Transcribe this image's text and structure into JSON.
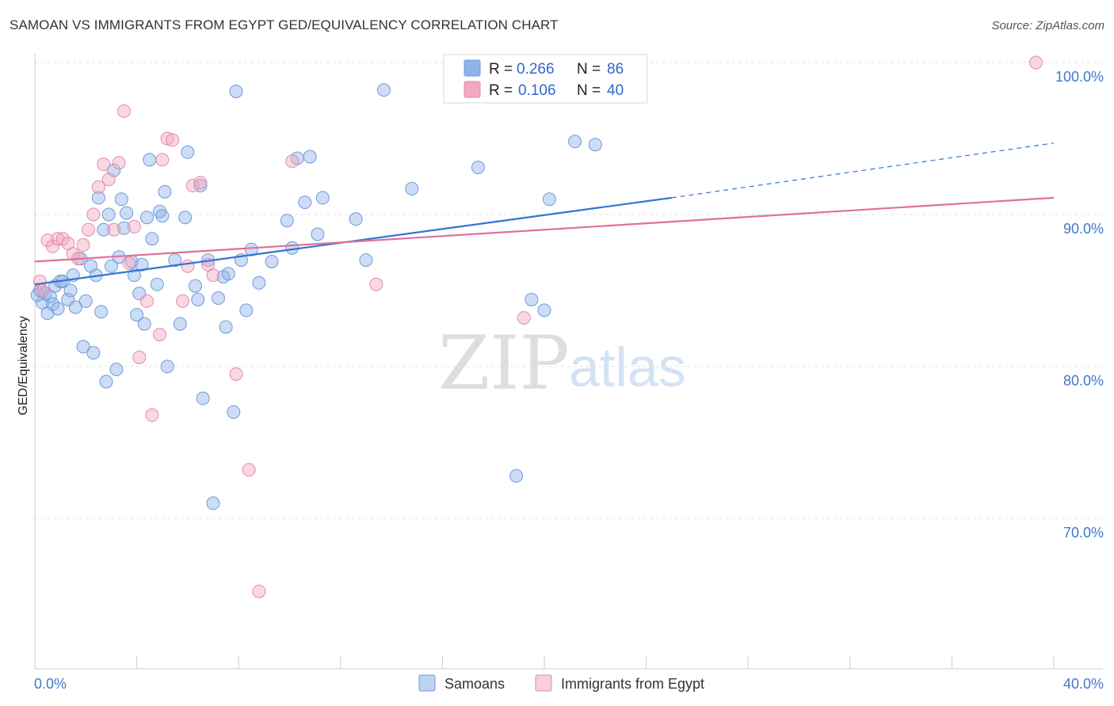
{
  "header": {
    "title": "SAMOAN VS IMMIGRANTS FROM EGYPT GED/EQUIVALENCY CORRELATION CHART",
    "source": "Source: ZipAtlas.com"
  },
  "watermark": {
    "zip": "ZIP",
    "atlas": "atlas"
  },
  "legend": {
    "rows": [
      {
        "r_label": "R =",
        "r_value": "0.266",
        "n_label": "N =",
        "n_value": "86",
        "color": "#8fb4e8"
      },
      {
        "r_label": "R =",
        "r_value": "0.106",
        "n_label": "N =",
        "n_value": "40",
        "color": "#f2a8c0"
      }
    ]
  },
  "bottom_legend": {
    "items": [
      "Samoans",
      "Immigrants from Egypt"
    ]
  },
  "chart_data": {
    "type": "scatter",
    "title": "SAMOAN VS IMMIGRANTS FROM EGYPT GED/EQUIVALENCY CORRELATION CHART",
    "xlabel": "",
    "ylabel": "GED/Equivalency",
    "xlim": [
      0,
      40
    ],
    "ylim": [
      60,
      100
    ],
    "x_tick_labels": [
      "0.0%",
      "40.0%"
    ],
    "y_tick_values": [
      70,
      80,
      90,
      100
    ],
    "y_tick_labels": [
      "70.0%",
      "80.0%",
      "90.0%",
      "100.0%"
    ],
    "grid": true,
    "legend_position": "top-center",
    "colors": {
      "Samoans": "#3374d4",
      "Immigrants from Egypt": "#e0709a",
      "tick_text": "#4477cc"
    },
    "series": [
      {
        "name": "Samoans",
        "color": "#8fb4e8",
        "stroke": "#6f9ad9",
        "trend": {
          "x0": 0,
          "y0": 85.4,
          "x1": 25,
          "y1": 91.1,
          "dashed_to_x": 40,
          "dashed_to_y": 94.7
        },
        "points": [
          [
            0.2,
            85.0
          ],
          [
            0.3,
            84.2
          ],
          [
            0.4,
            84.8
          ],
          [
            0.5,
            83.5
          ],
          [
            0.6,
            84.6
          ],
          [
            0.7,
            84.1
          ],
          [
            0.8,
            85.3
          ],
          [
            1.0,
            85.6
          ],
          [
            1.1,
            85.6
          ],
          [
            1.3,
            84.4
          ],
          [
            1.4,
            85.0
          ],
          [
            1.5,
            86.0
          ],
          [
            1.6,
            83.9
          ],
          [
            1.8,
            87.1
          ],
          [
            1.9,
            81.3
          ],
          [
            2.0,
            84.3
          ],
          [
            2.2,
            86.6
          ],
          [
            2.3,
            80.9
          ],
          [
            2.4,
            86.0
          ],
          [
            2.5,
            91.1
          ],
          [
            2.6,
            83.6
          ],
          [
            2.7,
            89.0
          ],
          [
            2.8,
            79.0
          ],
          [
            2.9,
            90.0
          ],
          [
            3.0,
            86.6
          ],
          [
            3.1,
            92.9
          ],
          [
            3.2,
            79.8
          ],
          [
            3.3,
            87.2
          ],
          [
            3.4,
            91.0
          ],
          [
            3.5,
            89.1
          ],
          [
            3.6,
            90.1
          ],
          [
            3.8,
            86.9
          ],
          [
            3.9,
            86.0
          ],
          [
            4.0,
            83.4
          ],
          [
            4.1,
            84.8
          ],
          [
            4.2,
            86.7
          ],
          [
            4.3,
            82.8
          ],
          [
            4.4,
            89.8
          ],
          [
            4.5,
            93.6
          ],
          [
            4.6,
            88.4
          ],
          [
            4.8,
            85.4
          ],
          [
            4.9,
            90.2
          ],
          [
            5.0,
            89.9
          ],
          [
            5.1,
            91.5
          ],
          [
            5.2,
            80.0
          ],
          [
            5.5,
            87.0
          ],
          [
            5.7,
            82.8
          ],
          [
            5.9,
            89.8
          ],
          [
            6.0,
            94.1
          ],
          [
            6.3,
            85.3
          ],
          [
            6.4,
            84.4
          ],
          [
            6.5,
            91.9
          ],
          [
            6.6,
            77.9
          ],
          [
            6.8,
            87.0
          ],
          [
            7.0,
            71.0
          ],
          [
            7.2,
            84.5
          ],
          [
            7.4,
            85.9
          ],
          [
            7.5,
            82.6
          ],
          [
            7.6,
            86.1
          ],
          [
            7.8,
            77.0
          ],
          [
            7.9,
            98.1
          ],
          [
            8.1,
            87.0
          ],
          [
            8.3,
            83.7
          ],
          [
            8.5,
            87.7
          ],
          [
            8.8,
            85.5
          ],
          [
            9.3,
            86.9
          ],
          [
            9.9,
            89.6
          ],
          [
            10.1,
            87.8
          ],
          [
            10.3,
            93.7
          ],
          [
            10.6,
            90.8
          ],
          [
            10.8,
            93.8
          ],
          [
            11.1,
            88.7
          ],
          [
            11.3,
            91.1
          ],
          [
            12.6,
            89.7
          ],
          [
            13.0,
            87.0
          ],
          [
            13.7,
            98.2
          ],
          [
            14.8,
            91.7
          ],
          [
            17.4,
            93.1
          ],
          [
            18.9,
            72.8
          ],
          [
            19.5,
            84.4
          ],
          [
            20.0,
            83.7
          ],
          [
            20.2,
            91.0
          ],
          [
            21.2,
            94.8
          ],
          [
            22.0,
            94.6
          ],
          [
            0.1,
            84.7
          ],
          [
            0.9,
            83.8
          ]
        ]
      },
      {
        "name": "Immigrants from Egypt",
        "color": "#f2a8c0",
        "stroke": "#e48aa8",
        "trend": {
          "x0": 0,
          "y0": 86.9,
          "x1": 40,
          "y1": 91.1
        },
        "points": [
          [
            0.2,
            85.6
          ],
          [
            0.5,
            88.3
          ],
          [
            0.7,
            87.9
          ],
          [
            0.9,
            88.4
          ],
          [
            1.1,
            88.4
          ],
          [
            1.3,
            88.1
          ],
          [
            1.5,
            87.4
          ],
          [
            1.7,
            87.1
          ],
          [
            1.9,
            88.0
          ],
          [
            2.1,
            89.0
          ],
          [
            2.3,
            90.0
          ],
          [
            2.5,
            91.8
          ],
          [
            2.7,
            93.3
          ],
          [
            2.9,
            92.3
          ],
          [
            3.1,
            89.0
          ],
          [
            3.3,
            93.4
          ],
          [
            3.5,
            96.8
          ],
          [
            3.7,
            86.8
          ],
          [
            4.1,
            80.6
          ],
          [
            4.4,
            84.3
          ],
          [
            4.6,
            76.8
          ],
          [
            4.9,
            82.1
          ],
          [
            5.0,
            93.6
          ],
          [
            5.2,
            95.0
          ],
          [
            5.4,
            94.9
          ],
          [
            5.8,
            84.3
          ],
          [
            6.0,
            86.6
          ],
          [
            6.2,
            91.9
          ],
          [
            6.5,
            92.1
          ],
          [
            6.8,
            86.7
          ],
          [
            7.0,
            86.0
          ],
          [
            7.9,
            79.5
          ],
          [
            8.4,
            73.2
          ],
          [
            8.8,
            65.2
          ],
          [
            10.1,
            93.5
          ],
          [
            13.4,
            85.4
          ],
          [
            19.2,
            83.2
          ],
          [
            39.3,
            100.0
          ],
          [
            0.3,
            85.0
          ],
          [
            3.9,
            89.2
          ]
        ]
      }
    ]
  }
}
